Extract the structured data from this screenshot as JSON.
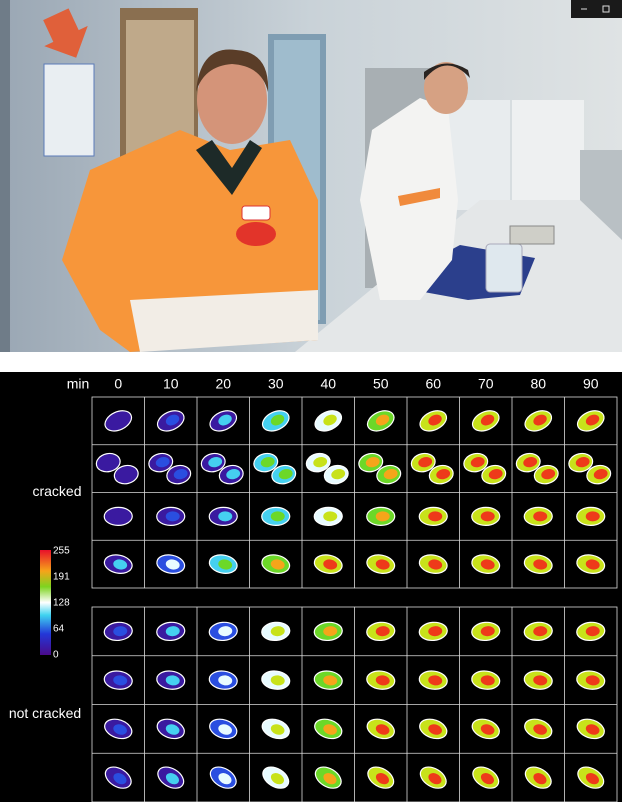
{
  "figure": {
    "axis_label": "min",
    "columns": [
      "0",
      "10",
      "20",
      "30",
      "40",
      "50",
      "60",
      "70",
      "80",
      "90"
    ],
    "groups": [
      "cracked",
      "not cracked"
    ],
    "colorbar": {
      "ticks": [
        "255",
        "191",
        "128",
        "64",
        "0"
      ]
    }
  }
}
